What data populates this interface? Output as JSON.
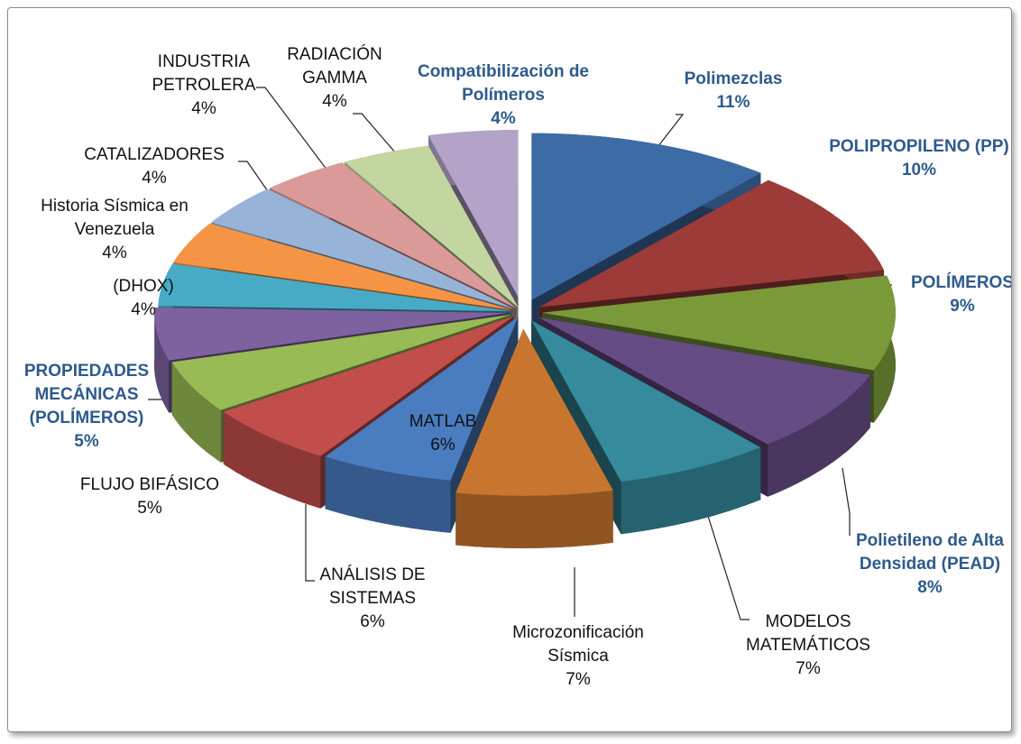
{
  "chart_data": {
    "type": "pie3d",
    "slices": [
      {
        "name": "Polimezclas",
        "value": 11,
        "value_label": "11%",
        "color": "#3d6ba6"
      },
      {
        "name": "POLIPROPILENO (PP)",
        "value": 10,
        "value_label": "10%",
        "color": "#9c3b38"
      },
      {
        "name": "POLÍMEROS",
        "value": 9,
        "value_label": "9%",
        "color": "#7a9a3a"
      },
      {
        "name": "Polietileno de Alta Densidad (PEAD)",
        "value": 8,
        "value_label": "8%",
        "color": "#654c85"
      },
      {
        "name": "MODELOS MATEMÁTICOS",
        "value": 7,
        "value_label": "7%",
        "color": "#358a9c"
      },
      {
        "name": "Microzonificación Sísmica",
        "value": 7,
        "value_label": "7%",
        "color": "#c8762f"
      },
      {
        "name": "MATLAB",
        "value": 6,
        "value_label": "6%",
        "color": "#4a7cc0"
      },
      {
        "name": "ANÁLISIS DE SISTEMAS",
        "value": 6,
        "value_label": "6%",
        "color": "#c24e4b"
      },
      {
        "name": "FLUJO BIFÁSICO",
        "value": 5,
        "value_label": "5%",
        "color": "#99bb55"
      },
      {
        "name": "PROPIEDADES MECÁNICAS (POLÍMEROS)",
        "value": 5,
        "value_label": "5%",
        "color": "#7e62a0"
      },
      {
        "name": "(DHOX)",
        "value": 4,
        "value_label": "4%",
        "color": "#48abc6"
      },
      {
        "name": "Historia Sísmica en Venezuela",
        "value": 4,
        "value_label": "4%",
        "color": "#f59445"
      },
      {
        "name": "CATALIZADORES",
        "value": 4,
        "value_label": "4%",
        "color": "#97b3d8"
      },
      {
        "name": "INDUSTRIA PETROLERA",
        "value": 4,
        "value_label": "4%",
        "color": "#d99a98"
      },
      {
        "name": "RADIACIÓN GAMMA",
        "value": 4,
        "value_label": "4%",
        "color": "#c4d6a0"
      },
      {
        "name": "Compatibilización de Polímeros",
        "value": 4,
        "value_label": "4%",
        "color": "#b3a3c8"
      }
    ]
  }
}
